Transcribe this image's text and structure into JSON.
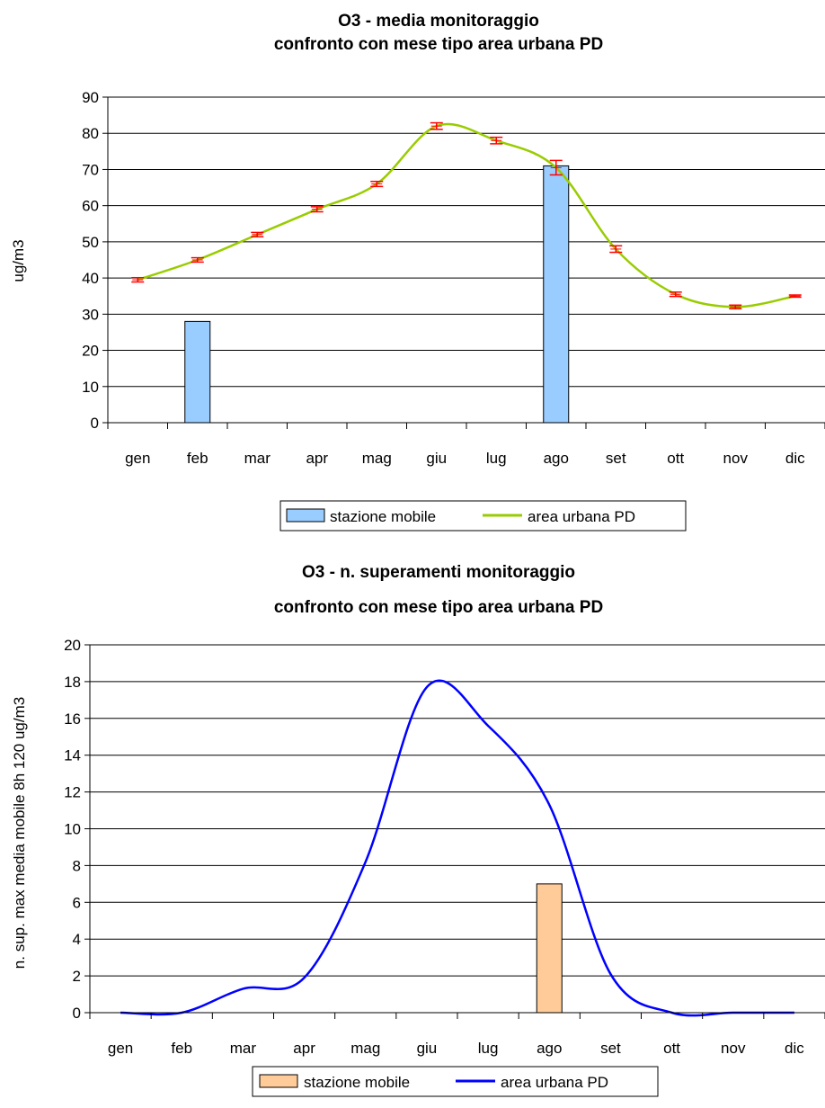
{
  "chart_data": [
    {
      "type": "bar+line",
      "title_line1": "O3 - media monitoraggio",
      "title_line2": "confronto con mese tipo area urbana PD",
      "xlabel": "",
      "ylabel": "ug/m3",
      "ylim": [
        0,
        90
      ],
      "yticks": [
        "0",
        "10",
        "20",
        "30",
        "40",
        "50",
        "60",
        "70",
        "80",
        "90"
      ],
      "categories": [
        "gen",
        "feb",
        "mar",
        "apr",
        "mag",
        "giu",
        "lug",
        "ago",
        "set",
        "ott",
        "nov",
        "dic"
      ],
      "series": [
        {
          "name": "stazione mobile",
          "kind": "bar",
          "color": "#99ccff",
          "values": [
            null,
            28,
            null,
            null,
            null,
            null,
            null,
            71,
            null,
            null,
            null,
            null
          ]
        },
        {
          "name": "area urbana PD",
          "kind": "line",
          "color": "#99cc00",
          "values": [
            39.5,
            45,
            52,
            59,
            66,
            82,
            78,
            70.5,
            48,
            35.5,
            32,
            35
          ],
          "error": [
            0.6,
            0.6,
            0.6,
            0.7,
            0.7,
            0.9,
            0.9,
            2,
            0.9,
            0.6,
            0.5,
            0.3
          ],
          "error_color": "#ff0000"
        }
      ],
      "grid": true,
      "legend_position": "bottom-right"
    },
    {
      "type": "bar+line",
      "title_line1": "O3 - n. superamenti monitoraggio",
      "title_line2": "confronto con mese tipo area urbana PD",
      "xlabel": "",
      "ylabel": "n. sup. max media mobile 8h 120 ug/m3",
      "ylim": [
        0,
        20
      ],
      "yticks": [
        "0",
        "2",
        "4",
        "6",
        "8",
        "10",
        "12",
        "14",
        "16",
        "18",
        "20"
      ],
      "categories": [
        "gen",
        "feb",
        "mar",
        "apr",
        "mag",
        "giu",
        "lug",
        "ago",
        "set",
        "ott",
        "nov",
        "dic"
      ],
      "series": [
        {
          "name": "stazione mobile",
          "kind": "bar",
          "color": "#ffcc99",
          "values": [
            null,
            null,
            null,
            null,
            null,
            null,
            null,
            7,
            null,
            null,
            null,
            null
          ]
        },
        {
          "name": "area urbana PD",
          "kind": "line",
          "color": "#0000ff",
          "values": [
            0,
            0,
            1.3,
            1.9,
            8.2,
            17.7,
            15.6,
            11.3,
            2.1,
            0,
            0,
            0
          ]
        }
      ],
      "grid": true,
      "legend_position": "bottom-center"
    }
  ]
}
